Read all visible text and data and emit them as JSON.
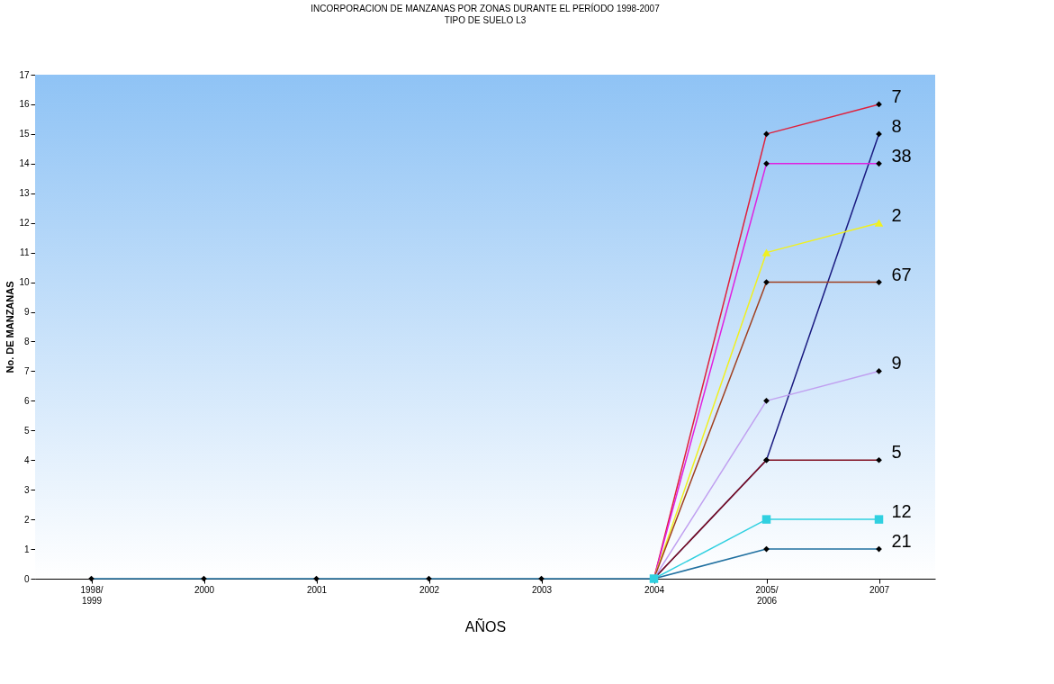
{
  "chart_data": {
    "type": "line",
    "title": "INCORPORACION DE MANZANAS POR ZONAS DURANTE EL PERÍODO 1998-2007",
    "subtitle": "TIPO DE SUELO L3",
    "xlabel": "AÑOS",
    "ylabel": "No. DE MANZANAS",
    "categories": [
      "1998/1999",
      "2000",
      "2001",
      "2002",
      "2003",
      "2004",
      "2005/2006",
      "2007"
    ],
    "ylim": [
      0,
      17
    ],
    "yticks": [
      0,
      1,
      2,
      3,
      4,
      5,
      6,
      7,
      8,
      9,
      10,
      11,
      12,
      13,
      14,
      15,
      16,
      17
    ],
    "grid": false,
    "legend": false,
    "marker": "diamond",
    "line_style": "solid",
    "series": [
      {
        "name": "7",
        "color": "#e0203c",
        "values": [
          null,
          null,
          null,
          null,
          null,
          0,
          15,
          16
        ]
      },
      {
        "name": "8",
        "color": "#1a1a80",
        "values": [
          null,
          null,
          null,
          null,
          null,
          0,
          4,
          15
        ]
      },
      {
        "name": "38",
        "color": "#e020e0",
        "values": [
          null,
          null,
          null,
          null,
          null,
          0,
          14,
          14
        ]
      },
      {
        "name": "2",
        "color": "#f0f020",
        "marker": "triangle",
        "values": [
          null,
          null,
          null,
          null,
          null,
          0,
          11,
          12
        ]
      },
      {
        "name": "67",
        "color": "#a04020",
        "values": [
          null,
          null,
          null,
          null,
          null,
          0,
          10,
          10
        ]
      },
      {
        "name": "9",
        "color": "#c0a0f0",
        "values": [
          null,
          null,
          null,
          null,
          null,
          0,
          6,
          7
        ]
      },
      {
        "name": "5",
        "color": "#801020",
        "values": [
          null,
          null,
          null,
          null,
          null,
          0,
          4,
          4
        ]
      },
      {
        "name": "12",
        "color": "#30d0e0",
        "marker": "square",
        "values": [
          null,
          null,
          null,
          null,
          null,
          0,
          2,
          2
        ]
      },
      {
        "name": "21",
        "color": "#2070a0",
        "values": [
          0,
          0,
          0,
          0,
          0,
          0,
          1,
          1
        ]
      }
    ]
  }
}
